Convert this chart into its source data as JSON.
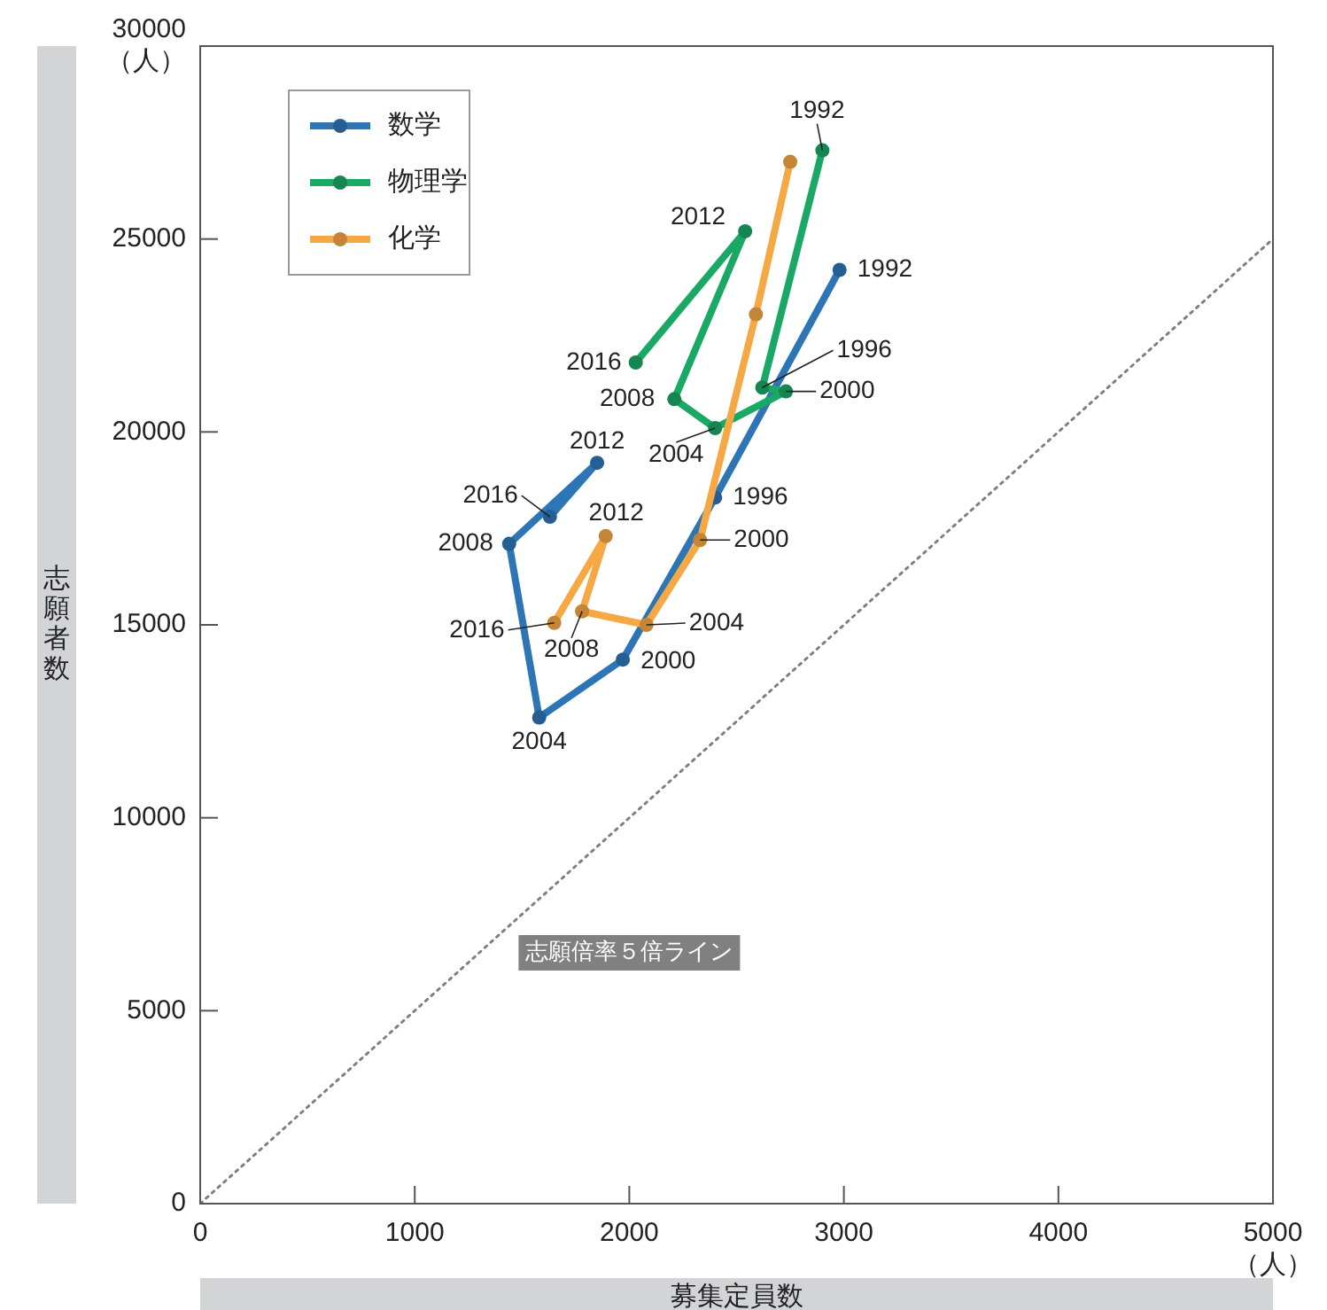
{
  "chart_data": {
    "type": "line",
    "xlabel": "募集定員数",
    "ylabel": "志願者数",
    "xlim": [
      0,
      5000
    ],
    "ylim": [
      0,
      30000
    ],
    "xticks": [
      0,
      1000,
      2000,
      3000,
      4000,
      {
        "value": 5000,
        "label": "5000\n（人）"
      }
    ],
    "yticks": [
      0,
      5000,
      10000,
      15000,
      20000,
      25000,
      {
        "value": 30000,
        "label": "30000\n（人）"
      }
    ],
    "grid": false,
    "legend": "top left",
    "marker": "circle",
    "series": [
      {
        "name": "数学",
        "color": "#2e75b6",
        "x": [
          2980,
          2400,
          1970,
          1580,
          1440,
          1850,
          1630
        ],
        "values": [
          24200,
          18300,
          14100,
          12600,
          17100,
          19200,
          17800
        ]
      },
      {
        "name": "物理学",
        "color": "#1aa865",
        "x": [
          2900,
          2620,
          2730,
          2400,
          2210,
          2540,
          2030
        ],
        "values": [
          27300,
          21150,
          21050,
          20100,
          20850,
          25200,
          21800
        ]
      },
      {
        "name": "化学",
        "color": "#f5a843",
        "x": [
          2750,
          2590,
          2330,
          2080,
          1780,
          1890,
          1650
        ],
        "values": [
          27000,
          23050,
          17200,
          15000,
          15350,
          17300,
          15050
        ]
      },
      {
        "name": "志願倍率５倍ライン",
        "type": "line",
        "color": "#808080",
        "x": [
          0,
          5000
        ],
        "values": [
          0,
          25000
        ],
        "line_style": "dotted",
        "marker": "none"
      }
    ],
    "annotations": [
      {
        "text": "1992",
        "x": 2980,
        "y": 24200
      },
      {
        "text": "1996",
        "x": 2400,
        "y": 18300
      },
      {
        "text": "2000",
        "x": 1970,
        "y": 14100
      },
      {
        "text": "2004",
        "x": 1580,
        "y": 12600
      },
      {
        "text": "2008",
        "x": 1440,
        "y": 17100
      },
      {
        "text": "2012",
        "x": 1850,
        "y": 19200
      },
      {
        "text": "2016",
        "x": 1630,
        "y": 17800
      },
      {
        "text": "1992",
        "x": 2900,
        "y": 27300
      },
      {
        "text": "1996",
        "x": 2620,
        "y": 21150
      },
      {
        "text": "2000",
        "x": 2730,
        "y": 21050
      },
      {
        "text": "2004",
        "x": 2400,
        "y": 20100
      },
      {
        "text": "2008",
        "x": 2210,
        "y": 20850
      },
      {
        "text": "2012",
        "x": 2540,
        "y": 25200
      },
      {
        "text": "2016",
        "x": 2030,
        "y": 21800
      },
      {
        "text": "2000",
        "x": 2330,
        "y": 17200
      },
      {
        "text": "2004",
        "x": 2080,
        "y": 15000
      },
      {
        "text": "2008",
        "x": 1780,
        "y": 15350
      },
      {
        "text": "2012",
        "x": 1890,
        "y": 17300
      },
      {
        "text": "2016",
        "x": 1650,
        "y": 15050
      }
    ]
  }
}
